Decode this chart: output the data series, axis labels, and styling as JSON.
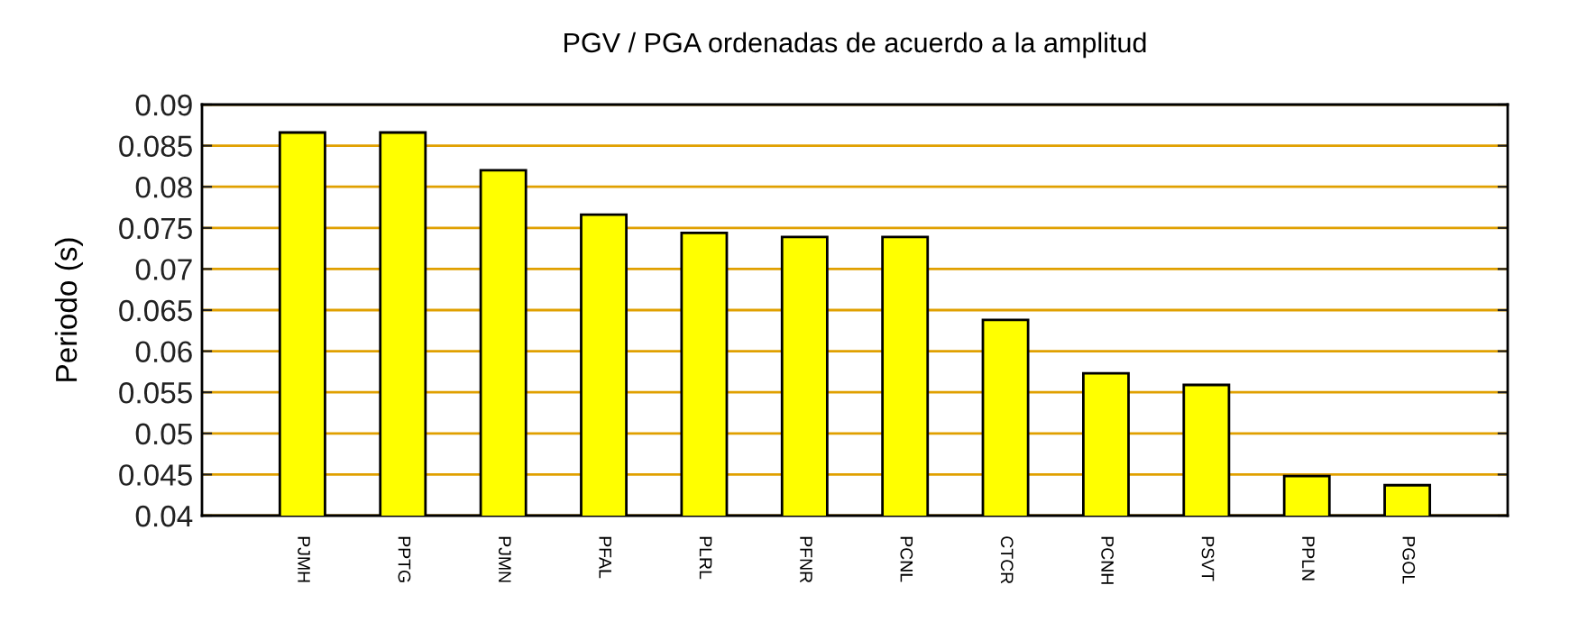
{
  "chart_data": {
    "type": "bar",
    "title": "PGV / PGA ordenadas de acuerdo a la amplitud",
    "ylabel": "Periodo (s)",
    "categories": [
      "PJMH",
      "PPTG",
      "PJMN",
      "PFAL",
      "PLRL",
      "PFNR",
      "PCNL",
      "CTCR",
      "PCNH",
      "PSVT",
      "PPLN",
      "PGOL"
    ],
    "values": [
      0.0866,
      0.0866,
      0.082,
      0.0766,
      0.0744,
      0.0739,
      0.0739,
      0.0638,
      0.0573,
      0.0559,
      0.0448,
      0.0437
    ],
    "color": "#ffff00",
    "ylim": [
      0.04,
      0.09
    ],
    "yticks": [
      0.04,
      0.045,
      0.05,
      0.055,
      0.06,
      0.065,
      0.07,
      0.075,
      0.08,
      0.085,
      0.09
    ],
    "grid": "y"
  }
}
